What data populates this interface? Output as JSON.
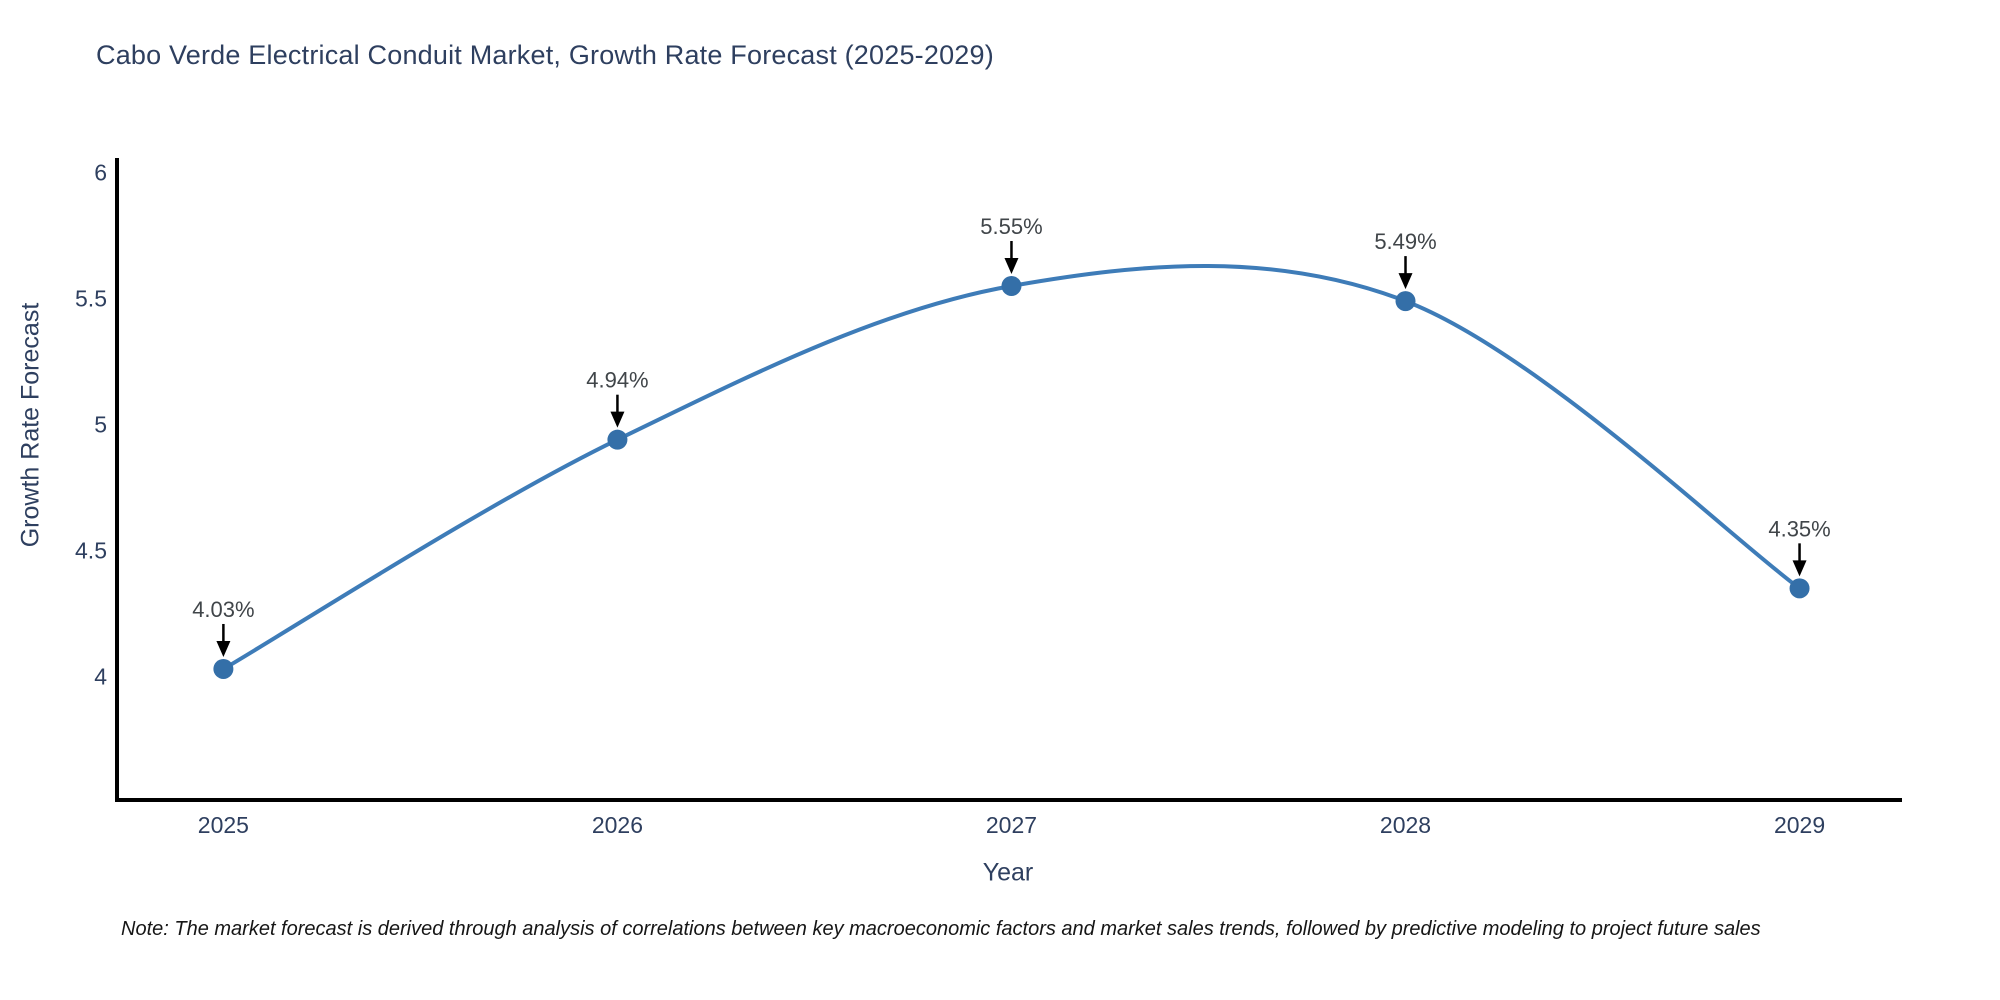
{
  "chart_data": {
    "type": "line",
    "title": "Cabo Verde Electrical Conduit Market, Growth Rate Forecast (2025-2029)",
    "xlabel": "Year",
    "ylabel": "Growth Rate Forecast",
    "x": [
      2025,
      2026,
      2027,
      2028,
      2029
    ],
    "values": [
      4.03,
      4.94,
      5.55,
      5.49,
      4.35
    ],
    "point_labels": [
      "4.03%",
      "4.94%",
      "5.55%",
      "5.49%",
      "4.35%"
    ],
    "xticks": [
      "2025",
      "2026",
      "2027",
      "2028",
      "2029"
    ],
    "yticks": [
      4,
      4.5,
      5,
      5.5,
      6
    ],
    "ytick_labels": [
      "4",
      "4.5",
      "5",
      "5.5",
      "6"
    ],
    "xlim": [
      2024.73,
      2029.26
    ],
    "ylim": [
      3.51,
      6.05
    ],
    "line_shape": "spline",
    "grid": false,
    "legend": "none",
    "note": "Note: The market forecast is derived through analysis of correlations between key macroeconomic factors and market sales trends, followed by predictive modeling to project future sales",
    "colors": {
      "line": "#3e7cb8",
      "marker": "#346fa8",
      "axis": "#000000",
      "tick_text": "#2e3f5f",
      "annotation_text": "#404549",
      "arrow": "#000000"
    }
  }
}
